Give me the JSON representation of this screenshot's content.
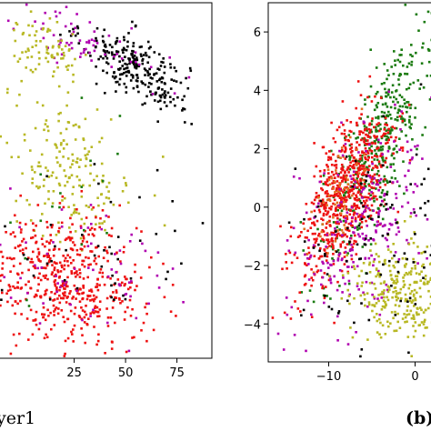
{
  "chart_data": [
    {
      "type": "scatter",
      "caption": "yer1",
      "xticks": [
        "25",
        "50",
        "75"
      ],
      "xlim": [
        -12,
        92
      ],
      "ylim": [
        -10,
        100
      ],
      "grid": false,
      "colors": {
        "black": "#000000",
        "yellow": "#b8b824",
        "magenta": "#b000b0",
        "red": "#ee1111",
        "green": "#1a7a10",
        "orange": "#e07020"
      },
      "clusters": [
        {
          "color": "black",
          "count": 260,
          "cx": 55,
          "cy": 80,
          "sx": 13,
          "sy": 5,
          "tilt": -0.33
        },
        {
          "color": "magenta",
          "count": 70,
          "cx": 30,
          "cy": 88,
          "sx": 20,
          "sy": 5,
          "tilt": -0.25
        },
        {
          "color": "yellow",
          "count": 80,
          "cx": 12,
          "cy": 86,
          "sx": 10,
          "sy": 5,
          "tilt": -0.2
        },
        {
          "color": "yellow",
          "count": 190,
          "cx": 22,
          "cy": 48,
          "sx": 16,
          "sy": 11,
          "tilt": -0.15
        },
        {
          "color": "red",
          "count": 520,
          "cx": 22,
          "cy": 14,
          "sx": 18,
          "sy": 10,
          "tilt": -0.08
        },
        {
          "color": "magenta",
          "count": 70,
          "cx": 28,
          "cy": 18,
          "sx": 24,
          "sy": 12,
          "tilt": 0
        },
        {
          "color": "black",
          "count": 45,
          "cx": 40,
          "cy": 24,
          "sx": 25,
          "sy": 10,
          "tilt": 0
        },
        {
          "color": "green",
          "count": 20,
          "cx": 20,
          "cy": 35,
          "sx": 18,
          "sy": 18,
          "tilt": 0
        }
      ]
    },
    {
      "type": "scatter",
      "caption": "(b)",
      "xticks": [
        "−10",
        "0"
      ],
      "yticks": [
        "6",
        "4",
        "2",
        "0",
        "−2",
        "−4"
      ],
      "xlim": [
        -17,
        3
      ],
      "ylim": [
        -5.3,
        7
      ],
      "grid": false,
      "colors": {
        "black": "#000000",
        "yellow": "#b8b824",
        "magenta": "#b000b0",
        "red": "#ee1111",
        "green": "#1a7a10",
        "orange": "#e07020"
      },
      "clusters": [
        {
          "color": "green",
          "count": 420,
          "cx": -4,
          "cy": 2.2,
          "sx": 3.4,
          "sy": 1.2,
          "tilt": 0.5
        },
        {
          "color": "red",
          "count": 650,
          "cx": -8,
          "cy": 0.4,
          "sx": 2.8,
          "sy": 1.2,
          "tilt": 0.35
        },
        {
          "color": "orange",
          "count": 70,
          "cx": -9,
          "cy": 0.3,
          "sx": 1.5,
          "sy": 0.8,
          "tilt": 0.3
        },
        {
          "color": "magenta",
          "count": 260,
          "cx": -6,
          "cy": -0.5,
          "sx": 4.2,
          "sy": 1.6,
          "tilt": 0.2
        },
        {
          "color": "yellow",
          "count": 330,
          "cx": -1,
          "cy": -2.8,
          "sx": 3.2,
          "sy": 0.9,
          "tilt": 0
        },
        {
          "color": "black",
          "count": 110,
          "cx": -5,
          "cy": -1.2,
          "sx": 4.5,
          "sy": 1.8,
          "tilt": 0
        }
      ]
    }
  ]
}
